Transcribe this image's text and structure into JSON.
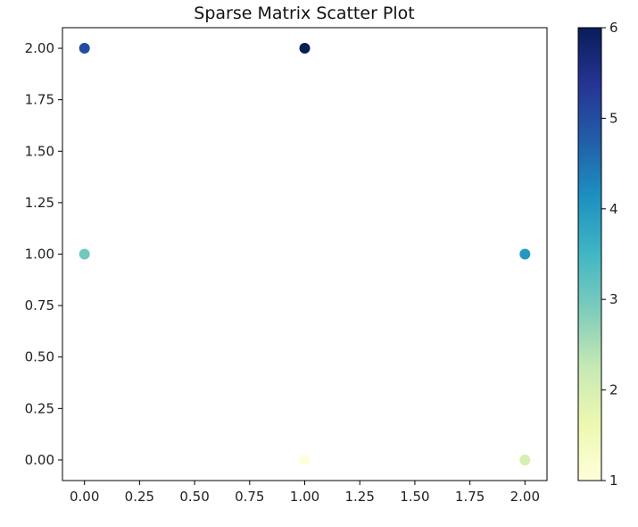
{
  "chart_data": {
    "type": "scatter",
    "title": "Sparse Matrix Scatter Plot",
    "xlabel": "",
    "ylabel": "",
    "xlim": [
      -0.1,
      2.1
    ],
    "ylim": [
      -0.1,
      2.1
    ],
    "x_ticks": [
      "0.00",
      "0.25",
      "0.50",
      "0.75",
      "1.00",
      "1.25",
      "1.50",
      "1.75",
      "2.00"
    ],
    "y_ticks": [
      "0.00",
      "0.25",
      "0.50",
      "0.75",
      "1.00",
      "1.25",
      "1.50",
      "1.75",
      "2.00"
    ],
    "grid": false,
    "points": [
      {
        "x": 0,
        "y": 2,
        "value": 5
      },
      {
        "x": 1,
        "y": 2,
        "value": 6
      },
      {
        "x": 0,
        "y": 1,
        "value": 3
      },
      {
        "x": 2,
        "y": 1,
        "value": 4
      },
      {
        "x": 1,
        "y": 0,
        "value": 1
      },
      {
        "x": 2,
        "y": 0,
        "value": 2
      }
    ],
    "colorbar": {
      "colormap": "YlGnBu",
      "range": [
        1,
        6
      ],
      "ticks": [
        "1",
        "2",
        "3",
        "4",
        "5",
        "6"
      ],
      "stops": [
        "#ffffd9",
        "#edf8b1",
        "#c7e9b4",
        "#7fcdbb",
        "#41b6c4",
        "#1d91c0",
        "#225ea8",
        "#253494",
        "#081d58"
      ]
    }
  }
}
